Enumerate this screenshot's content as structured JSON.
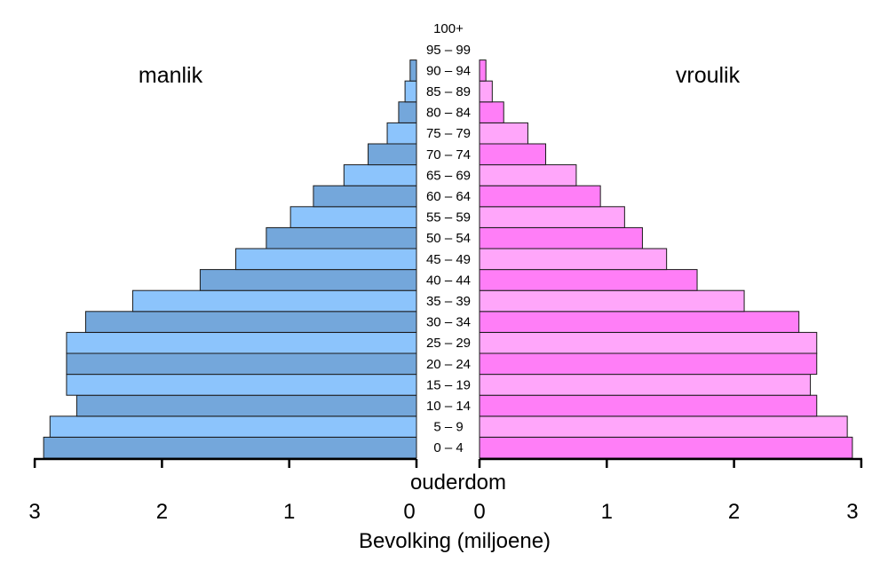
{
  "chart_data": {
    "type": "bar",
    "orientation": "horizontal-population-pyramid",
    "categories": [
      "0 – 4",
      "5 – 9",
      "10 – 14",
      "15 – 19",
      "20 – 24",
      "25 – 29",
      "30 – 34",
      "35 – 39",
      "40 – 44",
      "45 – 49",
      "50 – 54",
      "55 – 59",
      "60 – 64",
      "65 – 69",
      "70 – 74",
      "75 – 79",
      "80 – 84",
      "85 – 89",
      "90 – 94",
      "95 – 99",
      "100+"
    ],
    "series": [
      {
        "name": "manlik",
        "side": "left",
        "values": [
          2.93,
          2.88,
          2.67,
          2.75,
          2.75,
          2.75,
          2.6,
          2.23,
          1.7,
          1.42,
          1.18,
          0.99,
          0.81,
          0.57,
          0.38,
          0.23,
          0.14,
          0.09,
          0.05,
          0.0,
          0.0
        ],
        "colors": [
          "#74a7db",
          "#8cc4fc"
        ]
      },
      {
        "name": "vroulik",
        "side": "right",
        "values": [
          2.93,
          2.89,
          2.65,
          2.6,
          2.65,
          2.65,
          2.51,
          2.08,
          1.71,
          1.47,
          1.28,
          1.14,
          0.95,
          0.76,
          0.52,
          0.38,
          0.19,
          0.1,
          0.05,
          0.0,
          0.0
        ],
        "colors": [
          "#ff7ef7",
          "#ffa6fa"
        ]
      }
    ],
    "xlabel": "Bevolking (miljoene)",
    "ylabel": "ouderdom",
    "xlim": [
      0,
      3
    ],
    "xticks_left": [
      "3",
      "2",
      "1",
      "0"
    ],
    "xticks_right": [
      "0",
      "1",
      "2",
      "3"
    ],
    "grid": false
  }
}
